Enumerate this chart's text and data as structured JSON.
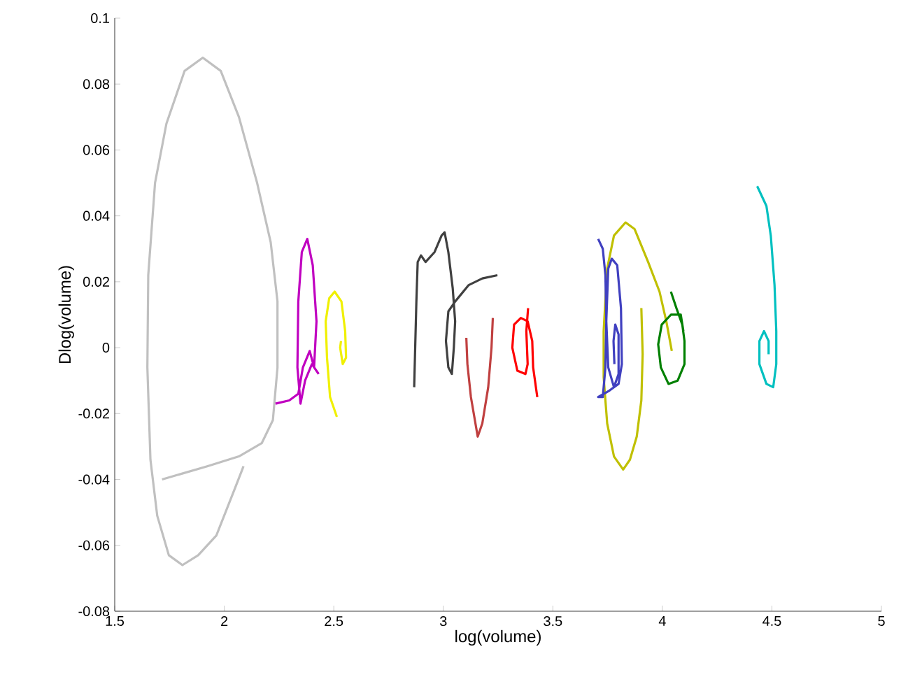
{
  "chart_data": {
    "type": "line",
    "xlabel": "log(volume)",
    "ylabel": "Dlog(volume)",
    "xlim": [
      1.5,
      5
    ],
    "ylim": [
      -0.08,
      0.1
    ],
    "xticks": [
      1.5,
      2,
      2.5,
      3,
      3.5,
      4,
      4.5,
      5
    ],
    "yticks": [
      -0.08,
      -0.06,
      -0.04,
      -0.02,
      0,
      0.02,
      0.04,
      0.06,
      0.08,
      0.1
    ],
    "marker": "none",
    "line_style": "solid",
    "series": [
      {
        "color": "#c0c0c0",
        "x": [
          2.088,
          2.047,
          1.964,
          1.881,
          1.809,
          1.747,
          1.694,
          1.663,
          1.649,
          1.653,
          1.684,
          1.736,
          1.819,
          1.902,
          1.984,
          2.067,
          2.15,
          2.212,
          2.243,
          2.243,
          2.222,
          2.171,
          2.067,
          1.922,
          1.716
        ],
        "values": [
          -0.036,
          -0.043,
          -0.057,
          -0.063,
          -0.066,
          -0.063,
          -0.051,
          -0.034,
          -0.006,
          0.022,
          0.05,
          0.068,
          0.084,
          0.088,
          0.084,
          0.07,
          0.05,
          0.032,
          0.014,
          -0.006,
          -0.022,
          -0.029,
          -0.033,
          -0.036,
          -0.04
        ]
      },
      {
        "color": "#c000c0",
        "x": [
          2.234,
          2.297,
          2.338,
          2.359,
          2.39,
          2.41,
          2.421,
          2.404,
          2.379,
          2.354,
          2.338,
          2.334,
          2.348,
          2.369,
          2.4,
          2.431
        ],
        "values": [
          -0.017,
          -0.016,
          -0.014,
          -0.006,
          -0.001,
          -0.006,
          0.008,
          0.025,
          0.033,
          0.029,
          0.014,
          -0.006,
          -0.017,
          -0.01,
          -0.005,
          -0.008
        ]
      },
      {
        "color": "#f0f000",
        "x": [
          2.514,
          2.483,
          2.469,
          2.463,
          2.479,
          2.504,
          2.535,
          2.552,
          2.556,
          2.541,
          2.529,
          2.533
        ],
        "values": [
          -0.021,
          -0.015,
          -0.003,
          0.008,
          0.015,
          0.017,
          0.014,
          0.005,
          -0.003,
          -0.005,
          0,
          0.002
        ]
      },
      {
        "color": "#404040",
        "x": [
          2.867,
          2.877,
          2.883,
          2.898,
          2.919,
          2.96,
          2.992,
          3.006,
          3.023,
          3.043,
          3.054,
          3.048,
          3.039,
          3.023,
          3.012,
          3.023,
          3.054,
          3.116,
          3.178,
          3.247
        ],
        "values": [
          -0.012,
          0.014,
          0.026,
          0.028,
          0.026,
          0.029,
          0.034,
          0.035,
          0.029,
          0.018,
          0.008,
          0,
          -0.008,
          -0.006,
          0.002,
          0.011,
          0.014,
          0.019,
          0.021,
          0.022
        ]
      },
      {
        "color": "#c04040",
        "x": [
          3.105,
          3.11,
          3.126,
          3.157,
          3.178,
          3.205,
          3.22,
          3.226
        ],
        "values": [
          0.003,
          -0.005,
          -0.015,
          -0.027,
          -0.023,
          -0.012,
          0,
          0.009
        ]
      },
      {
        "color": "#ff0000",
        "x": [
          3.387,
          3.379,
          3.385,
          3.375,
          3.338,
          3.315,
          3.323,
          3.354,
          3.385,
          3.406,
          3.41,
          3.429
        ],
        "values": [
          0.012,
          0.005,
          -0.005,
          -0.008,
          -0.007,
          0,
          0.007,
          0.009,
          0.008,
          0.002,
          -0.006,
          -0.015
        ]
      },
      {
        "color": "#c0c000",
        "x": [
          3.904,
          3.91,
          3.904,
          3.883,
          3.852,
          3.821,
          3.779,
          3.748,
          3.732,
          3.732,
          3.748,
          3.779,
          3.832,
          3.873,
          3.935,
          3.987,
          4.018,
          4.043
        ],
        "values": [
          0.012,
          -0.002,
          -0.016,
          -0.027,
          -0.034,
          -0.037,
          -0.033,
          -0.023,
          -0.009,
          0.005,
          0.024,
          0.034,
          0.038,
          0.036,
          0.026,
          0.017,
          0.008,
          -0.001
        ]
      },
      {
        "color": "#4040c0",
        "x": [
          3.707,
          3.728,
          3.74,
          3.744,
          3.74,
          3.728,
          3.707,
          3.759,
          3.8,
          3.815,
          3.811,
          3.794,
          3.769,
          3.753,
          3.744,
          3.753,
          3.779,
          3.8,
          3.8,
          3.785,
          3.777,
          3.781
        ],
        "values": [
          0.033,
          0.03,
          0.022,
          0.008,
          -0.006,
          -0.015,
          -0.015,
          -0.013,
          -0.011,
          -0.005,
          0.012,
          0.025,
          0.027,
          0.024,
          0.008,
          -0.006,
          -0.012,
          -0.008,
          0.004,
          0.007,
          0.002,
          -0.005
        ]
      },
      {
        "color": "#008000",
        "x": [
          4.039,
          4.064,
          4.091,
          4.101,
          4.101,
          4.07,
          4.028,
          3.993,
          3.981,
          3.997,
          4.039,
          4.084,
          4.096
        ],
        "values": [
          0.017,
          0.012,
          0.007,
          0.002,
          -0.005,
          -0.01,
          -0.011,
          -0.006,
          0.001,
          0.007,
          0.01,
          0.01,
          0.005
        ]
      },
      {
        "color": "#00c0c0",
        "x": [
          4.433,
          4.475,
          4.495,
          4.512,
          4.52,
          4.52,
          4.506,
          4.475,
          4.443,
          4.443,
          4.464,
          4.485,
          4.485
        ],
        "values": [
          0.049,
          0.043,
          0.034,
          0.019,
          0.005,
          -0.005,
          -0.012,
          -0.011,
          -0.005,
          0.002,
          0.005,
          0.002,
          -0.002
        ]
      }
    ]
  }
}
